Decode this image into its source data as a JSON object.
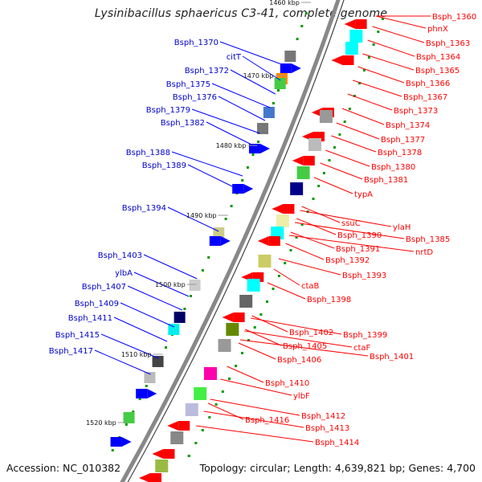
{
  "title": "Lysinibacillus sphaericus C3-41, complete genome",
  "accession_text": "Accession: NC_010382",
  "topology_text": "Topology: circular; Length: 4,639,821 bp; Genes: 4,700",
  "colors": {
    "plus_label": "#0000cc",
    "minus_label": "#ff0000",
    "plus_arrow": "#0000ff",
    "minus_arrow": "#ff0000",
    "backbone": "#888888",
    "tick": "#009900"
  },
  "kbp_markers": [
    "1460 kbp",
    "1470 kbp",
    "1480 kbp",
    "1490 kbp",
    "1500 kbp",
    "1510 kbp",
    "1520 kbp"
  ],
  "left_labels": [
    "Bsph_1370",
    "citT",
    "Bsph_1372",
    "Bsph_1375",
    "Bsph_1376",
    "Bsph_1379",
    "Bsph_1382",
    "Bsph_1388",
    "Bsph_1389",
    "Bsph_1394",
    "Bsph_1403",
    "ylbA",
    "Bsph_1407",
    "Bsph_1409",
    "Bsph_1411",
    "Bsph_1415",
    "Bsph_1417"
  ],
  "right_labels": [
    "Bsph_1360",
    "phnX",
    "Bsph_1363",
    "Bsph_1364",
    "Bsph_1365",
    "Bsph_1366",
    "Bsph_1367",
    "Bsph_1373",
    "Bsph_1374",
    "Bsph_1377",
    "Bsph_1378",
    "Bsph_1380",
    "Bsph_1381",
    "typA",
    "ylaH",
    "ssuC",
    "Bsph_1385",
    "Bsph_1390",
    "nrtD",
    "Bsph_1391",
    "Bsph_1392",
    "Bsph_1393",
    "ctaB",
    "Bsph_1398",
    "Bsph_1402",
    "Bsph_1399",
    "Bsph_1405",
    "ctaF",
    "Bsph_1406",
    "Bsph_1401",
    "Bsph_1410",
    "ylbF",
    "Bsph_1412",
    "Bsph_1416",
    "Bsph_1413",
    "Bsph_1414"
  ]
}
